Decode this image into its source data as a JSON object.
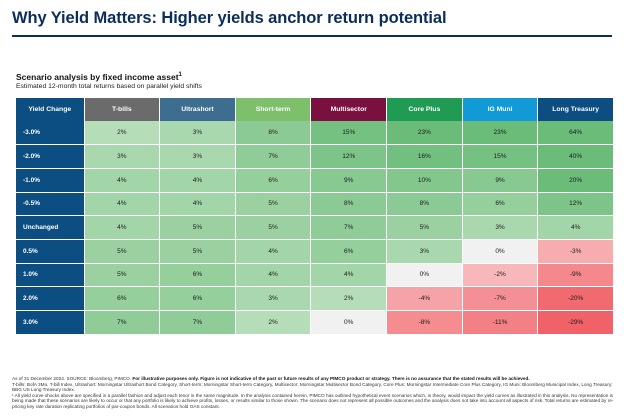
{
  "title": "Why Yield Matters: Higher yields anchor return potential",
  "subtitle": "Scenario analysis by fixed income asset",
  "subtitle_sup": "1",
  "caption": "Estimated 12-month total returns based on parallel yield shifts",
  "table": {
    "corner": "Yield Change",
    "columns": [
      "T-bills",
      "Ultrashort",
      "Short-term",
      "Multisector",
      "Core Plus",
      "IG Muni",
      "Long Treasury"
    ],
    "rows": [
      {
        "label": "-3.0%",
        "values": [
          "2%",
          "3%",
          "8%",
          "15%",
          "23%",
          "23%",
          "64%"
        ]
      },
      {
        "label": "-2.0%",
        "values": [
          "3%",
          "3%",
          "7%",
          "12%",
          "16%",
          "15%",
          "40%"
        ]
      },
      {
        "label": "-1.0%",
        "values": [
          "4%",
          "4%",
          "6%",
          "9%",
          "10%",
          "9%",
          "20%"
        ]
      },
      {
        "label": "-0.5%",
        "values": [
          "4%",
          "4%",
          "5%",
          "8%",
          "8%",
          "6%",
          "12%"
        ]
      },
      {
        "label": "Unchanged",
        "values": [
          "4%",
          "5%",
          "5%",
          "7%",
          "5%",
          "3%",
          "4%"
        ]
      },
      {
        "label": "0.5%",
        "values": [
          "5%",
          "5%",
          "4%",
          "6%",
          "3%",
          "0%",
          "-3%"
        ]
      },
      {
        "label": "1.0%",
        "values": [
          "5%",
          "6%",
          "4%",
          "4%",
          "0%",
          "-2%",
          "-9%"
        ]
      },
      {
        "label": "2.0%",
        "values": [
          "6%",
          "6%",
          "3%",
          "2%",
          "-4%",
          "-7%",
          "-20%"
        ]
      },
      {
        "label": "3.0%",
        "values": [
          "7%",
          "7%",
          "2%",
          "0%",
          "-8%",
          "-11%",
          "-29%"
        ]
      }
    ]
  },
  "footer": {
    "line1_a": "As of 31 December 2024. SOURCE: Bloomberg, PIMCO.",
    "line1_b": "For illustrative purposes only. Figure is not indicative of the past or future results of any PIMCO product or strategy. There is no assurance that the stated results will be achieved.",
    "line2": "T-bills: BofA 3Mo. T-bill Index, Ultrashort: Morningstar Ultrashort Bond Category, Short-term: Morningstar Short-term Category, Multisector: Morningstar Multisector Bond Category, Core Plus: Morningstar Intermediate Core Plus Category, IG Muni: Bloomberg Municipal Index, Long Treasury: BBG US Long Treasury Index.",
    "line3": "¹ All yield curve shocks above are specified in a parallel fashion and adjust each tenor in the same magnitude. In the analysis contained herein, PIMCO has outlined hypothetical event scenarios which, in theory, would impact the yield curves as illustrated in this analysis. No representation is being made that these scenarios are likely to occur or that any portfolio is likely to achieve profits, losses, or results similar to those shown. The scenario does not represent all possible outcomes and the analysis does not take into account all aspects of risk. Total returns are estimated by re-pricing key rate duration replicating portfolios of par-coupon bonds. All scenarios hold OAS constant."
  }
}
